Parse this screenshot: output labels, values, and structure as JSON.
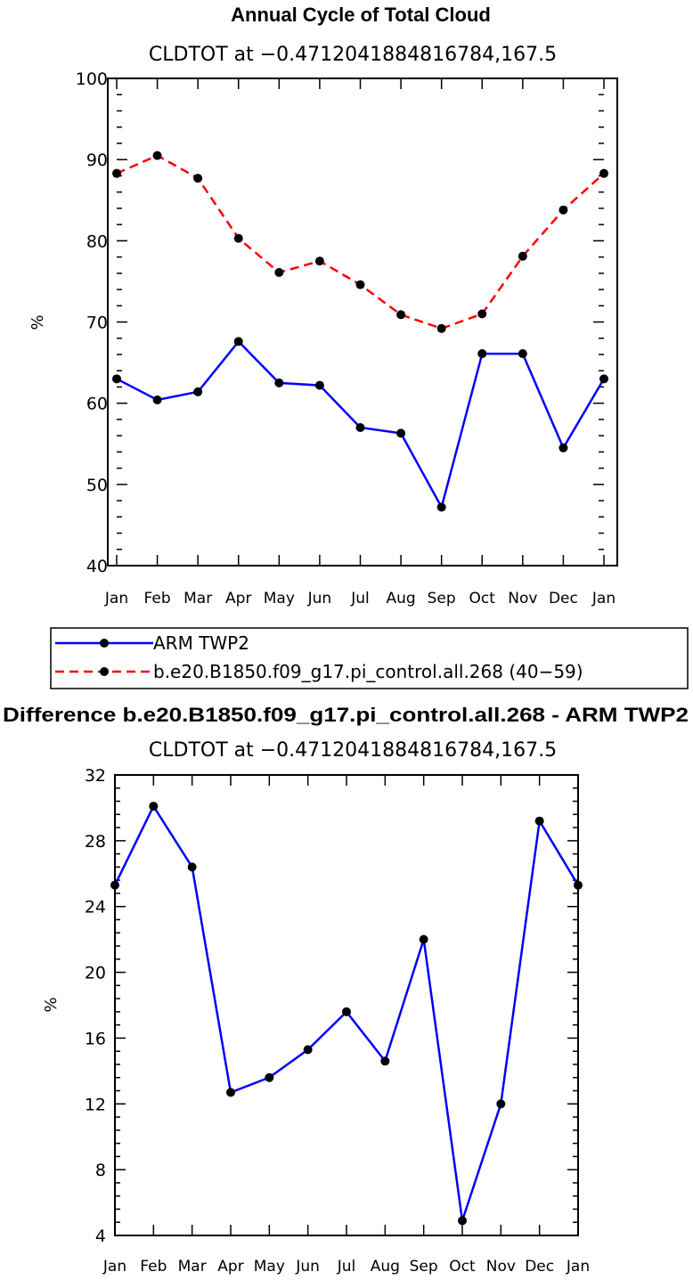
{
  "chart_data": [
    {
      "type": "line",
      "title": "Annual Cycle of Total Cloud",
      "subtitle": "CLDTOT at −0.4712041884816784,167.5",
      "xlabel": "",
      "ylabel": "%",
      "categories": [
        "Jan",
        "Feb",
        "Mar",
        "Apr",
        "May",
        "Jun",
        "Jul",
        "Aug",
        "Sep",
        "Oct",
        "Nov",
        "Dec",
        "Jan"
      ],
      "ylim": [
        40,
        100
      ],
      "yticks": [
        40,
        50,
        60,
        70,
        80,
        90,
        100
      ],
      "series": [
        {
          "name": "ARM TWP2",
          "color": "#0000ff",
          "dash": "solid",
          "values": [
            63.0,
            60.4,
            61.4,
            67.6,
            62.5,
            62.2,
            57.0,
            56.3,
            47.2,
            66.1,
            66.1,
            54.5,
            63.0
          ]
        },
        {
          "name": "b.e20.B1850.f09_g17.pi_control.all.268 (40−59)",
          "color": "#ff0000",
          "dash": "dashed",
          "values": [
            88.3,
            90.5,
            87.7,
            80.3,
            76.1,
            77.5,
            74.6,
            70.9,
            69.2,
            71.0,
            78.1,
            83.8,
            88.3
          ]
        }
      ],
      "legend": {
        "position": "below"
      }
    },
    {
      "type": "line",
      "title": "Difference b.e20.B1850.f09_g17.pi_control.all.268 - ARM TWP2",
      "subtitle": "CLDTOT at −0.4712041884816784,167.5",
      "xlabel": "",
      "ylabel": "%",
      "categories": [
        "Jan",
        "Feb",
        "Mar",
        "Apr",
        "May",
        "Jun",
        "Jul",
        "Aug",
        "Sep",
        "Oct",
        "Nov",
        "Dec",
        "Jan"
      ],
      "ylim": [
        4,
        32
      ],
      "yticks": [
        4,
        8,
        12,
        16,
        20,
        24,
        28,
        32
      ],
      "series": [
        {
          "name": "Difference",
          "color": "#0000ff",
          "dash": "solid",
          "values": [
            25.3,
            30.1,
            26.4,
            12.7,
            13.6,
            15.3,
            17.6,
            14.6,
            22.0,
            4.9,
            12.0,
            29.2,
            25.3
          ]
        }
      ]
    }
  ]
}
